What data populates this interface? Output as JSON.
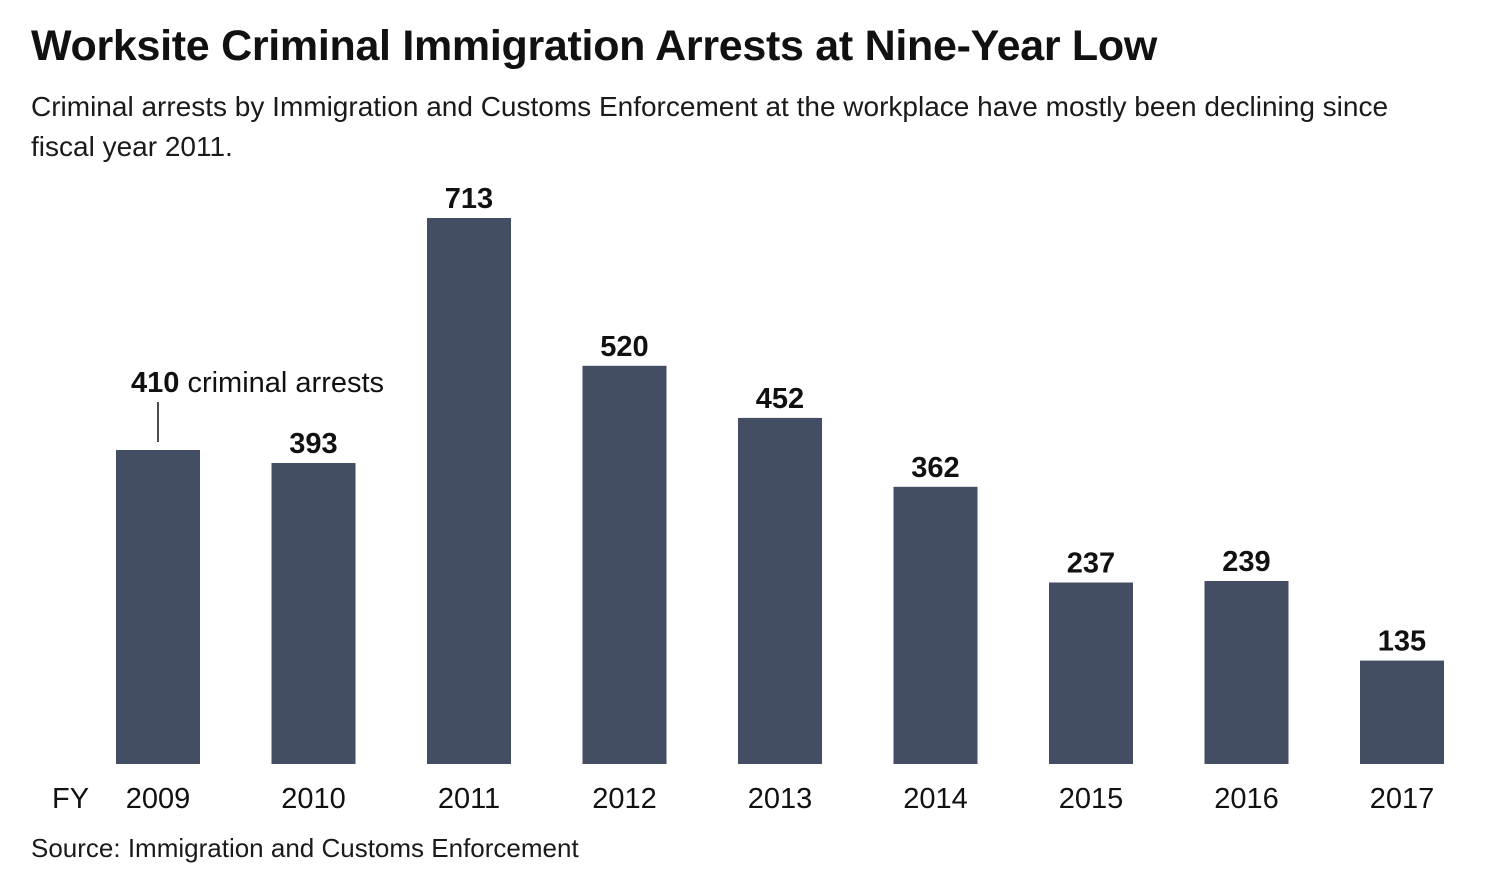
{
  "chart_data": {
    "type": "bar",
    "title": "Worksite Criminal Immigration Arrests at Nine-Year Low",
    "subtitle": "Criminal arrests by Immigration and Customs Enforcement at the workplace have mostly been declining since fiscal year 2011.",
    "xlabel": "FY",
    "ylabel": "",
    "categories": [
      "2009",
      "2010",
      "2011",
      "2012",
      "2013",
      "2014",
      "2015",
      "2016",
      "2017"
    ],
    "values": [
      410,
      393,
      713,
      520,
      452,
      362,
      237,
      239,
      135
    ],
    "data_labels": [
      "410",
      "393",
      "713",
      "520",
      "452",
      "362",
      "237",
      "239",
      "135"
    ],
    "annotation": {
      "category": "2009",
      "text": "criminal arrests"
    },
    "ylim": [
      0,
      713
    ],
    "grid": false,
    "legend": "none",
    "bar_color": "#434d63",
    "source": "Source: Immigration and Customs Enforcement"
  }
}
